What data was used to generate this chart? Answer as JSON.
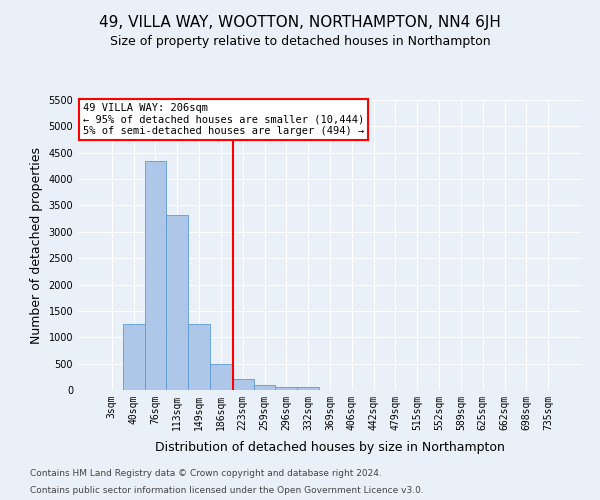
{
  "title": "49, VILLA WAY, WOOTTON, NORTHAMPTON, NN4 6JH",
  "subtitle": "Size of property relative to detached houses in Northampton",
  "xlabel": "Distribution of detached houses by size in Northampton",
  "ylabel": "Number of detached properties",
  "footnote1": "Contains HM Land Registry data © Crown copyright and database right 2024.",
  "footnote2": "Contains public sector information licensed under the Open Government Licence v3.0.",
  "bin_labels": [
    "3sqm",
    "40sqm",
    "76sqm",
    "113sqm",
    "149sqm",
    "186sqm",
    "223sqm",
    "259sqm",
    "296sqm",
    "332sqm",
    "369sqm",
    "406sqm",
    "442sqm",
    "479sqm",
    "515sqm",
    "552sqm",
    "589sqm",
    "625sqm",
    "662sqm",
    "698sqm",
    "735sqm"
  ],
  "bar_values": [
    0,
    1260,
    4350,
    3310,
    1260,
    490,
    215,
    90,
    55,
    55,
    0,
    0,
    0,
    0,
    0,
    0,
    0,
    0,
    0,
    0,
    0
  ],
  "bar_color": "#aec6e8",
  "bar_edge_color": "#5b9bd5",
  "vline_x": 5.54,
  "vline_color": "red",
  "annotation_text": "49 VILLA WAY: 206sqm\n← 95% of detached houses are smaller (10,444)\n5% of semi-detached houses are larger (494) →",
  "annotation_box_color": "white",
  "annotation_box_edge": "red",
  "ylim": [
    0,
    5500
  ],
  "yticks": [
    0,
    500,
    1000,
    1500,
    2000,
    2500,
    3000,
    3500,
    4000,
    4500,
    5000,
    5500
  ],
  "bg_color": "#eaf0f8",
  "plot_bg_color": "#eaf0f8",
  "grid_color": "white",
  "title_fontsize": 11,
  "subtitle_fontsize": 9,
  "axis_label_fontsize": 9,
  "tick_fontsize": 7,
  "annotation_fontsize": 7.5,
  "footnote_fontsize": 6.5
}
